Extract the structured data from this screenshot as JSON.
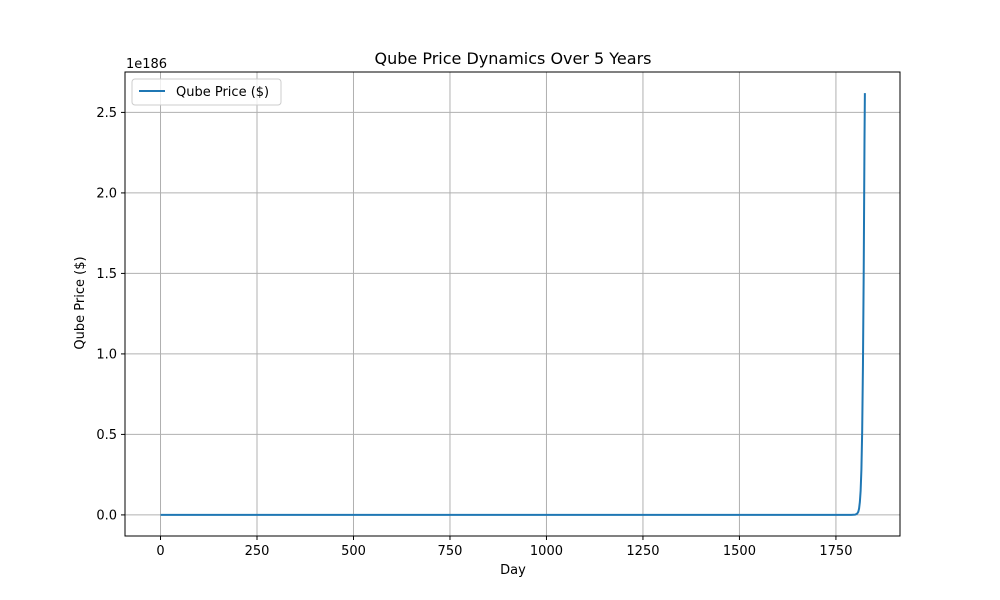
{
  "chart_data": {
    "type": "line",
    "title": "Qube Price Dynamics Over 5 Years",
    "xlabel": "Day",
    "ylabel": "Qube Price ($)",
    "y_offset_label": "1e186",
    "xlim": [
      -92,
      1916
    ],
    "ylim": [
      -0.131,
      2.751
    ],
    "xticks": [
      0,
      250,
      500,
      750,
      1000,
      1250,
      1500,
      1750
    ],
    "xtick_labels": [
      "0",
      "250",
      "500",
      "750",
      "1000",
      "1250",
      "1500",
      "1750"
    ],
    "yticks": [
      0.0,
      0.5,
      1.0,
      1.5,
      2.0,
      2.5
    ],
    "ytick_labels": [
      "0.0",
      "0.5",
      "1.0",
      "1.5",
      "2.0",
      "2.5"
    ],
    "grid": true,
    "legend_position": "upper-left",
    "series": [
      {
        "name": "Qube Price ($)",
        "color": "#1f77b4",
        "x": [
          0,
          250,
          500,
          750,
          1000,
          1250,
          1500,
          1750,
          1790,
          1800,
          1805,
          1808,
          1810,
          1812,
          1814,
          1816,
          1818,
          1820,
          1822,
          1824,
          1825
        ],
        "y": [
          0,
          0,
          0,
          0,
          0,
          0,
          0,
          0,
          0.0001,
          0.002,
          0.008,
          0.02,
          0.04,
          0.08,
          0.15,
          0.28,
          0.52,
          0.93,
          1.52,
          2.32,
          2.62
        ]
      }
    ]
  }
}
